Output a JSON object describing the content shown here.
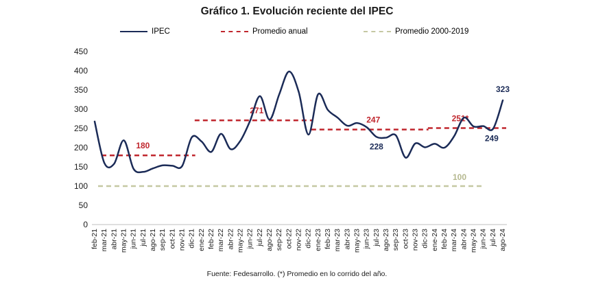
{
  "title": "Gráfico 1. Evolución reciente del IPEC",
  "source": "Fuente: Fedesarrollo. (*) Promedio en lo corrido del año.",
  "legend": {
    "ipec": "IPEC",
    "annual": "Promedio anual",
    "historical": "Promedio 2000-2019"
  },
  "colors": {
    "ipec": "#1b2b57",
    "annual": "#c0262d",
    "historical": "#c5c8a2",
    "historical_label": "#b5b88f",
    "axis": "#bfbfbf"
  },
  "chart_data": {
    "type": "line",
    "title": "Gráfico 1. Evolución reciente del IPEC",
    "ylim": [
      0,
      450
    ],
    "yticks": [
      0,
      50,
      100,
      150,
      200,
      250,
      300,
      350,
      400,
      450
    ],
    "x": [
      "feb-21",
      "mar-21",
      "abr-21",
      "may-21",
      "jun-21",
      "jul-21",
      "ago-21",
      "sep-21",
      "oct-21",
      "nov-21",
      "dic-21",
      "ene-22",
      "feb-22",
      "mar-22",
      "abr-22",
      "may-22",
      "jun-22",
      "jul-22",
      "ago-22",
      "sep-22",
      "oct-22",
      "nov-22",
      "dic-22",
      "ene-23",
      "feb-23",
      "mar-23",
      "abr-23",
      "may-23",
      "jun-23",
      "jul-23",
      "ago-23",
      "sep-23",
      "oct-23",
      "nov-23",
      "dic-23",
      "ene-24",
      "feb-24",
      "mar-24",
      "abr-24",
      "may-24",
      "jun-24",
      "jul-24",
      "ago-24"
    ],
    "series": [
      {
        "name": "IPEC",
        "style": "solid",
        "values": [
          268,
          160,
          158,
          219,
          145,
          137,
          146,
          154,
          153,
          152,
          227,
          216,
          189,
          236,
          196,
          218,
          270,
          334,
          273,
          339,
          398,
          345,
          234,
          339,
          298,
          278,
          257,
          264,
          253,
          228,
          226,
          232,
          174,
          211,
          201,
          210,
          200,
          230,
          278,
          255,
          256,
          249,
          323
        ]
      },
      {
        "name": "Promedio anual",
        "style": "dashed",
        "segments": [
          {
            "from": "feb-21",
            "to": "dic-21",
            "value": 180,
            "label": "180"
          },
          {
            "from": "ene-22",
            "to": "dic-22",
            "value": 271,
            "label": "271"
          },
          {
            "from": "ene-23",
            "to": "dic-23",
            "value": 247,
            "label": "247"
          },
          {
            "from": "ene-24",
            "to": "ago-24",
            "value": 251,
            "label": "251*"
          }
        ]
      },
      {
        "name": "Promedio 2000-2019",
        "style": "dashed",
        "value": 100,
        "label": "100"
      }
    ],
    "point_labels": [
      {
        "x": "jul-23",
        "value": 228,
        "text": "228"
      },
      {
        "x": "jul-24",
        "value": 249,
        "text": "249"
      },
      {
        "x": "ago-24",
        "value": 323,
        "text": "323"
      }
    ]
  }
}
